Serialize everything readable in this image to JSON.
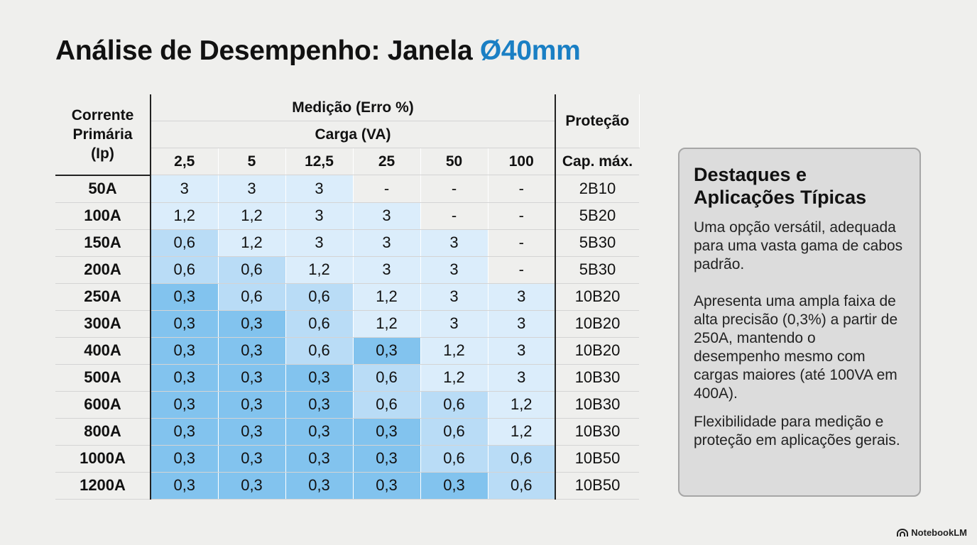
{
  "title": {
    "main": "Análise de Desempenho: Janela ",
    "accent": "Ø40mm"
  },
  "table": {
    "header": {
      "corrente_line1": "Corrente",
      "corrente_line2": "Primária",
      "corrente_line3": "(Ip)",
      "medicao": "Medição (Erro %)",
      "carga": "Carga (VA)",
      "protecao": "Proteção",
      "cap_max": "Cap. máx.",
      "loads": [
        "2,5",
        "5",
        "12,5",
        "25",
        "50",
        "100"
      ]
    },
    "rows": [
      {
        "ip": "50A",
        "values": [
          "3",
          "3",
          "3",
          "-",
          "-",
          "-"
        ],
        "prot": "2B10"
      },
      {
        "ip": "100A",
        "values": [
          "1,2",
          "1,2",
          "3",
          "3",
          "-",
          "-"
        ],
        "prot": "5B20"
      },
      {
        "ip": "150A",
        "values": [
          "0,6",
          "1,2",
          "3",
          "3",
          "3",
          "-"
        ],
        "prot": "5B30"
      },
      {
        "ip": "200A",
        "values": [
          "0,6",
          "0,6",
          "1,2",
          "3",
          "3",
          "-"
        ],
        "prot": "5B30"
      },
      {
        "ip": "250A",
        "values": [
          "0,3",
          "0,6",
          "0,6",
          "1,2",
          "3",
          "3"
        ],
        "prot": "10B20"
      },
      {
        "ip": "300A",
        "values": [
          "0,3",
          "0,3",
          "0,6",
          "1,2",
          "3",
          "3"
        ],
        "prot": "10B20"
      },
      {
        "ip": "400A",
        "values": [
          "0,3",
          "0,3",
          "0,6",
          "0,3",
          "1,2",
          "3"
        ],
        "prot": "10B20"
      },
      {
        "ip": "500A",
        "values": [
          "0,3",
          "0,3",
          "0,3",
          "0,6",
          "1,2",
          "3"
        ],
        "prot": "10B30"
      },
      {
        "ip": "600A",
        "values": [
          "0,3",
          "0,3",
          "0,3",
          "0,6",
          "0,6",
          "1,2"
        ],
        "prot": "10B30"
      },
      {
        "ip": "800A",
        "values": [
          "0,3",
          "0,3",
          "0,3",
          "0,3",
          "0,6",
          "1,2"
        ],
        "prot": "10B30"
      },
      {
        "ip": "1000A",
        "values": [
          "0,3",
          "0,3",
          "0,3",
          "0,3",
          "0,6",
          "0,6"
        ],
        "prot": "10B50"
      },
      {
        "ip": "1200A",
        "values": [
          "0,3",
          "0,3",
          "0,3",
          "0,3",
          "0,3",
          "0,6"
        ],
        "prot": "10B50"
      }
    ]
  },
  "panel": {
    "heading": "Destaques e Aplicações Típicas",
    "p1": "Uma opção versátil, adequada para uma vasta gama de cabos padrão.",
    "p2": "Apresenta uma ampla faixa de alta precisão (0,3%) a partir de 250A, mantendo o desempenho mesmo com cargas maiores (até 100VA em 400A).",
    "p3": "Flexibilidade para medição e proteção em aplicações gerais."
  },
  "brand": {
    "label": "NotebookLM",
    "icon": "notebooklm-logo-icon"
  },
  "colors": {
    "accent": "#1a7fc4",
    "shade_light": "#dbedfb",
    "shade_mid": "#b9dcf6",
    "shade_dark": "#82c3ee"
  }
}
